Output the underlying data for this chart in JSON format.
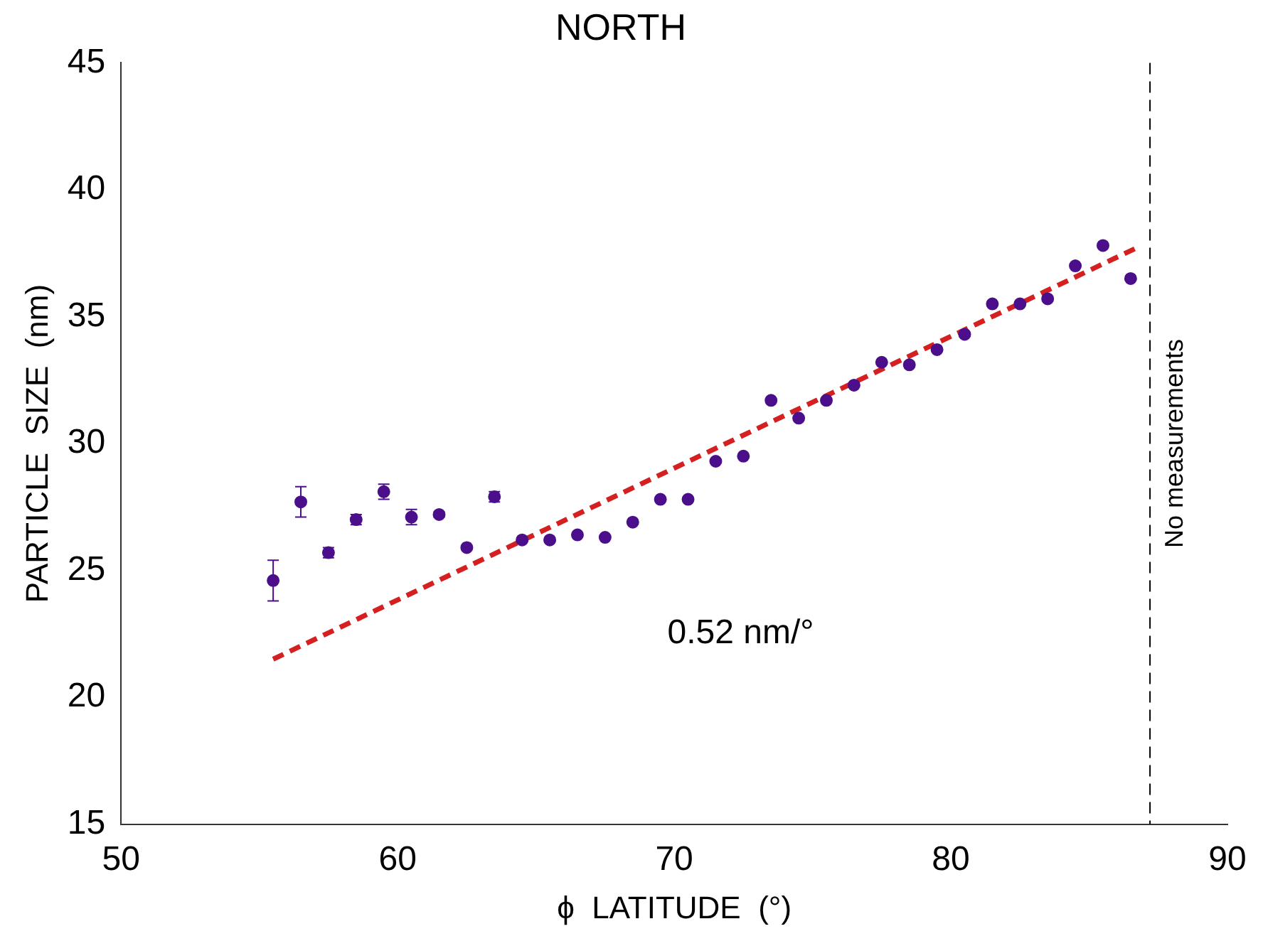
{
  "chart_data": {
    "type": "scatter",
    "title": "NORTH",
    "xlabel": "ϕ  LATITUDE  (°)",
    "ylabel": "PARTICLE  SIZE  (nm)",
    "xlim": [
      50,
      90
    ],
    "xticks": [
      50,
      60,
      70,
      80,
      90
    ],
    "ylim": [
      15,
      45
    ],
    "yticks": [
      15,
      20,
      25,
      30,
      35,
      40,
      45
    ],
    "grid": false,
    "legend": false,
    "marker": "circle",
    "series": [
      {
        "color": "#4b0f8c",
        "x": [
          55.5,
          56.5,
          57.5,
          58.5,
          59.5,
          60.5,
          61.5,
          62.5,
          63.5,
          64.5,
          65.5,
          66.5,
          67.5,
          68.5,
          69.5,
          70.5,
          71.5,
          72.5,
          73.5,
          74.5,
          75.5,
          76.5,
          77.5,
          78.5,
          79.5,
          80.5,
          81.5,
          82.5,
          83.5,
          84.5,
          85.5,
          86.5
        ],
        "values": [
          24.6,
          27.7,
          25.7,
          27.0,
          28.1,
          27.1,
          27.2,
          25.9,
          27.9,
          26.2,
          26.2,
          26.4,
          26.3,
          26.9,
          27.8,
          27.8,
          29.3,
          29.5,
          31.7,
          31.0,
          31.7,
          32.3,
          33.2,
          33.1,
          33.7,
          34.3,
          35.5,
          35.5,
          35.7,
          37.0,
          37.8,
          36.5
        ],
        "errors": [
          0.8,
          0.6,
          0.2,
          0.2,
          0.3,
          0.3,
          0.1,
          null,
          0.2,
          null,
          null,
          null,
          null,
          null,
          null,
          null,
          null,
          null,
          null,
          null,
          null,
          null,
          null,
          null,
          null,
          null,
          null,
          null,
          null,
          null,
          null,
          null
        ]
      },
      {
        "type": "line",
        "color": "#d42020",
        "line_style": "dashed",
        "marker": "none",
        "x": [
          55.5,
          86.7
        ],
        "values": [
          21.5,
          37.7
        ]
      }
    ],
    "ref_lines": [
      {
        "axis": "x",
        "value": 87.2,
        "label": "No measurements",
        "color": "#000000",
        "line_style": "dashed"
      }
    ],
    "annotations": [
      "0.52 nm/°"
    ]
  }
}
